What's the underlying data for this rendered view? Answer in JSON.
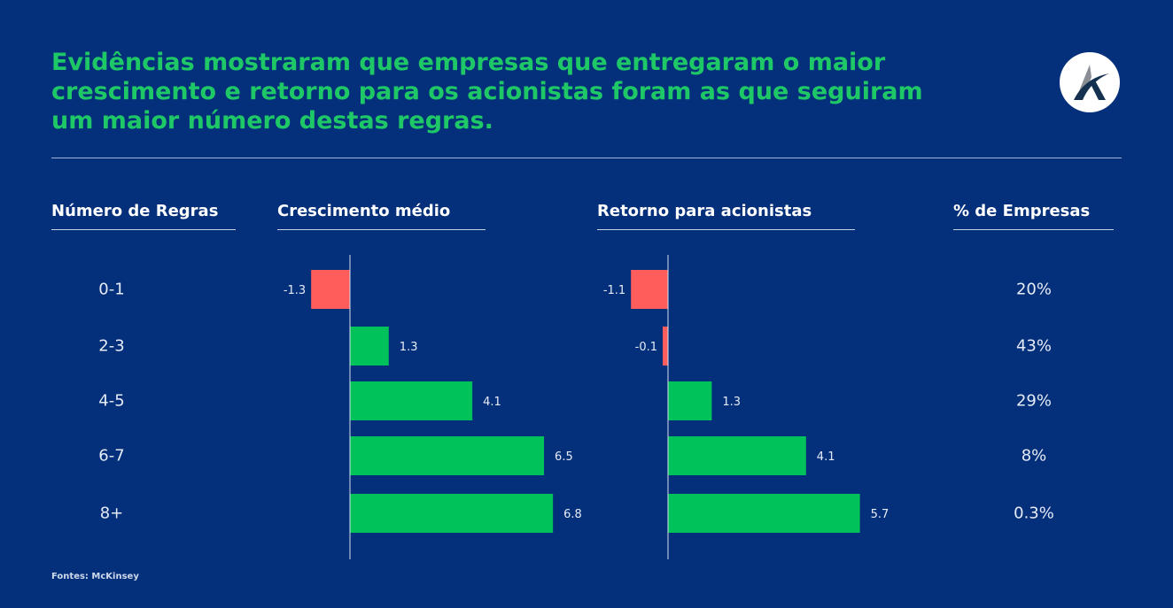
{
  "title": "Evidências mostraram que empresas que entregaram o maior crescimento e retorno para os acionistas foram as que seguiram um maior número destas regras.",
  "headers": {
    "rules": "Número de Regras",
    "growth": "Crescimento médio",
    "return": "Retorno para acionistas",
    "companies": "% de Empresas"
  },
  "source": "Fontes: McKinsey",
  "logo_icon": "stylized-letter-a-logo",
  "colors": {
    "positive": "#00c25a",
    "negative": "#ff5c5c",
    "title": "#1fc866",
    "background": "#042f7a"
  },
  "chart_data": {
    "type": "bar",
    "orientation": "horizontal",
    "categories": [
      "0-1",
      "2-3",
      "4-5",
      "6-7",
      "8+"
    ],
    "series": [
      {
        "name": "Crescimento médio",
        "values": [
          -1.3,
          1.3,
          4.1,
          6.5,
          6.8
        ],
        "labels": [
          "-1.3",
          "1.3",
          "4.1",
          "6.5",
          "6.8"
        ]
      },
      {
        "name": "Retorno para acionistas",
        "values": [
          -1.1,
          -0.1,
          1.3,
          4.1,
          5.7
        ],
        "labels": [
          "-1.1",
          "-0.1",
          "1.3",
          "4.1",
          "5.7"
        ]
      }
    ],
    "percent_companies": [
      "20%",
      "43%",
      "29%",
      "8%",
      "0.3%"
    ]
  }
}
